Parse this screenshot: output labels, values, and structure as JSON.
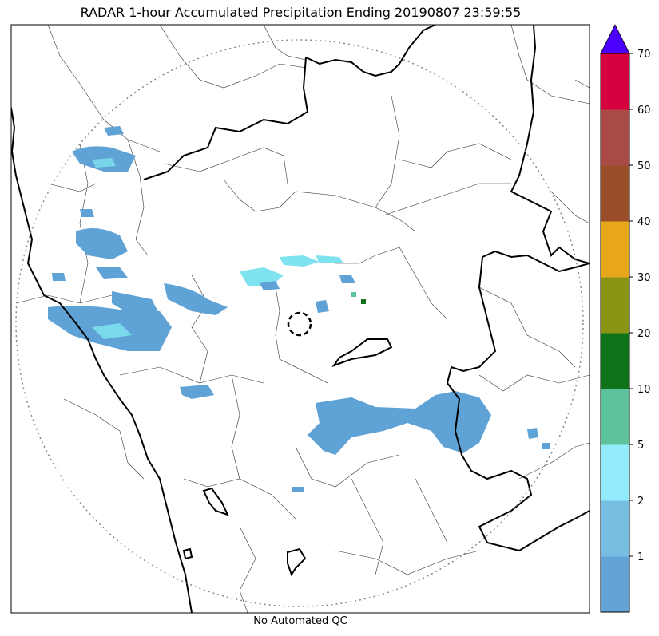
{
  "title": "RADAR 1-hour Accumulated Precipitation Ending 20190807 23:59:55",
  "footer": "No Automated QC",
  "map": {
    "range_ring": "dotted",
    "radar_site_marker": "dashed-circle",
    "state_borders": "thick-black",
    "district_borders": "thin-black",
    "precip_color": "#5fa2d6",
    "precip_light_color": "#7fe3ef"
  },
  "colorbar": {
    "extend": "max",
    "extend_color": "#4b00ff",
    "levels": [
      {
        "label": "",
        "color": "#63a3d5"
      },
      {
        "label": "1",
        "color": "#78bee2"
      },
      {
        "label": "2",
        "color": "#93ecfc"
      },
      {
        "label": "5",
        "color": "#5cc39c"
      },
      {
        "label": "10",
        "color": "#0f7419"
      },
      {
        "label": "20",
        "color": "#8a9516"
      },
      {
        "label": "30",
        "color": "#e8a71a"
      },
      {
        "label": "40",
        "color": "#9a4e28"
      },
      {
        "label": "50",
        "color": "#a94a44"
      },
      {
        "label": "60",
        "color": "#d6003f"
      },
      {
        "label": "70",
        "color": ""
      }
    ]
  }
}
